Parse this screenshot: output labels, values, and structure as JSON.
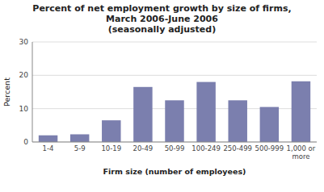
{
  "chart_data": {
    "type": "bar",
    "title": "Percent of net employment growth by size of firms,\nMarch 2006-June 2006\n(seasonally adjusted)",
    "xlabel": "Firm size (number of employees)",
    "ylabel": "Percent",
    "categories": [
      "1-4",
      "5-9",
      "10-19",
      "20-49",
      "50-99",
      "100-249",
      "250-499",
      "500-999",
      "1,000 or\nmore"
    ],
    "values": [
      2.0,
      2.3,
      6.5,
      16.5,
      12.5,
      18.0,
      12.5,
      10.5,
      18.2
    ],
    "color": "#7b7fae",
    "ylim": [
      0,
      30
    ],
    "yticks": [
      0,
      10,
      20,
      30
    ],
    "grid": true
  }
}
